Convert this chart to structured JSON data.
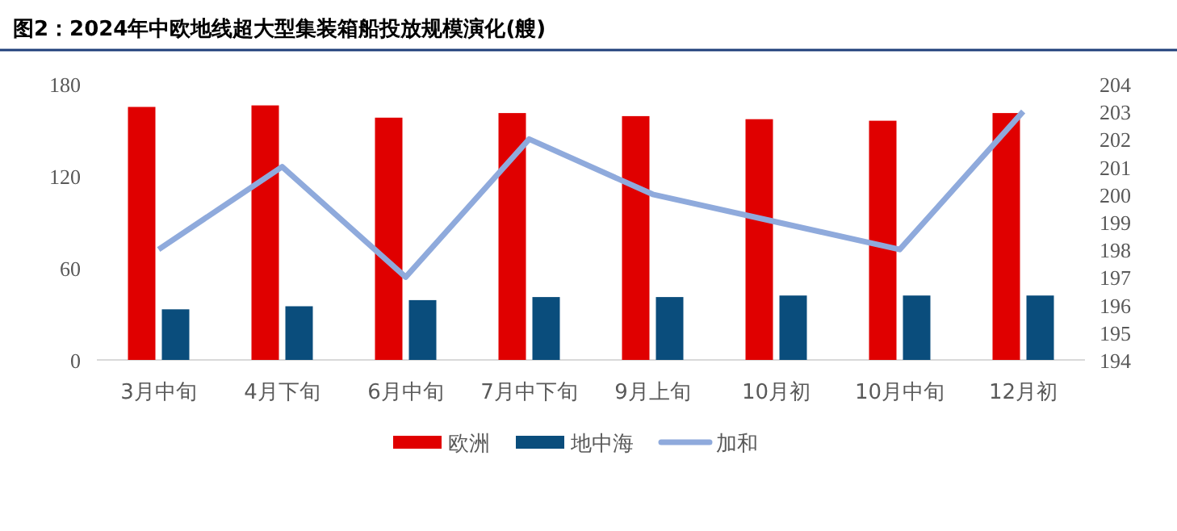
{
  "chart_data": {
    "type": "bar",
    "title": "图2：2024年中欧地线超大型集装箱船投放规模演化(艘)",
    "categories": [
      "3月中旬",
      "4月下旬",
      "6月中旬",
      "7月中下旬",
      "9月上旬",
      "10月初",
      "10月中旬",
      "12月初"
    ],
    "series": [
      {
        "name": "欧洲",
        "color": "#e00000",
        "values": [
          165,
          166,
          158,
          161,
          159,
          157,
          156,
          161
        ]
      },
      {
        "name": "地中海",
        "color": "#0a4d7c",
        "values": [
          33,
          35,
          39,
          41,
          41,
          42,
          42,
          42
        ]
      },
      {
        "name": "加和",
        "type": "line",
        "axis": "y2",
        "color": "#8faadc",
        "values": [
          198,
          201,
          197,
          202,
          200,
          199,
          198,
          203
        ]
      }
    ],
    "ylim": [
      0,
      180
    ],
    "yticks": [
      0,
      60,
      120,
      180
    ],
    "y2lim": [
      194,
      204
    ],
    "y2ticks": [
      194,
      195,
      196,
      197,
      198,
      199,
      200,
      201,
      202,
      203,
      204
    ],
    "grid": false,
    "legend": "bottom"
  }
}
